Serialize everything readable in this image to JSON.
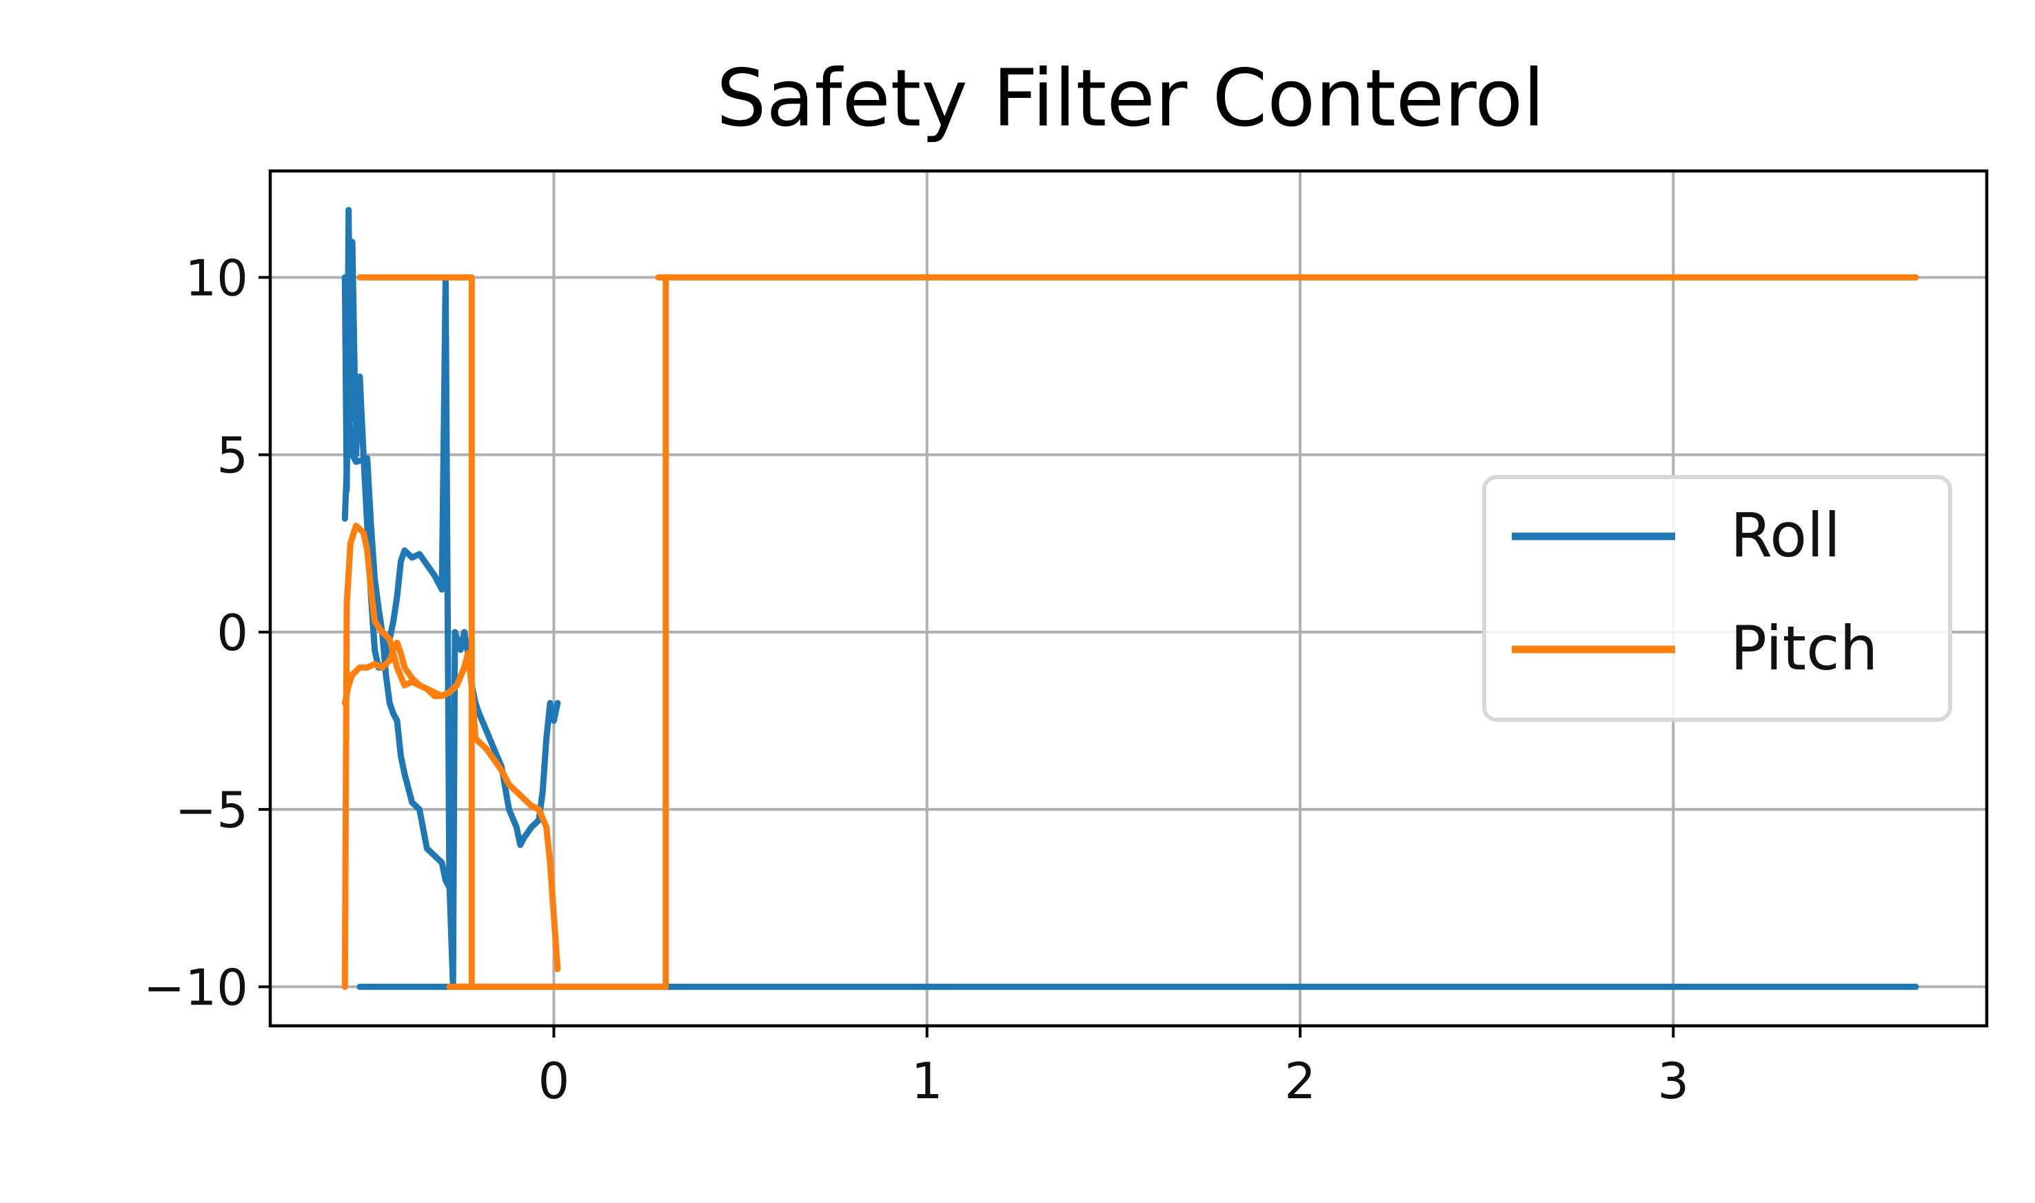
{
  "chart_data": {
    "type": "line",
    "title": "Safety Filter Conterol",
    "xlabel": "",
    "ylabel": "",
    "xlim": [
      -0.76,
      3.84
    ],
    "ylim": [
      -11.1,
      13.0
    ],
    "x_ticks": [
      0,
      1,
      2,
      3
    ],
    "x_tick_labels": [
      "0",
      "1",
      "2",
      "3"
    ],
    "y_ticks": [
      10,
      5,
      0,
      -5,
      -10
    ],
    "y_tick_labels": [
      "10",
      "5",
      "0",
      "−5",
      "−10"
    ],
    "grid": true,
    "legend_position": "center-right",
    "series": [
      {
        "name": "Roll",
        "color": "#1f77b4",
        "points": [
          [
            -0.56,
            10.0
          ],
          [
            -0.555,
            4.0
          ],
          [
            -0.55,
            11.9
          ],
          [
            -0.545,
            6.0
          ],
          [
            -0.54,
            11.0
          ],
          [
            -0.53,
            5.0
          ],
          [
            -0.52,
            7.2
          ],
          [
            -0.51,
            5.0
          ],
          [
            -0.5,
            3.0
          ],
          [
            -0.49,
            1.0
          ],
          [
            -0.48,
            -0.5
          ],
          [
            -0.47,
            -1.0
          ],
          [
            -0.46,
            -1.0
          ],
          [
            -0.45,
            -0.8
          ],
          [
            -0.44,
            -0.2
          ],
          [
            -0.43,
            0.3
          ],
          [
            -0.42,
            1.0
          ],
          [
            -0.41,
            2.0
          ],
          [
            -0.4,
            2.3
          ],
          [
            -0.38,
            2.1
          ],
          [
            -0.36,
            2.2
          ],
          [
            -0.34,
            1.9
          ],
          [
            -0.32,
            1.6
          ],
          [
            -0.3,
            1.2
          ],
          [
            -0.29,
            10.0
          ],
          [
            -0.28,
            -7.0
          ],
          [
            -0.27,
            -10.0
          ],
          [
            -0.265,
            0.0
          ],
          [
            -0.25,
            -0.5
          ],
          [
            -0.24,
            0.0
          ],
          [
            -0.23,
            -0.6
          ],
          [
            -0.22,
            -1.5
          ],
          [
            -0.21,
            -2.0
          ],
          [
            -0.2,
            -2.3
          ],
          [
            -0.18,
            -2.8
          ],
          [
            -0.16,
            -3.3
          ],
          [
            -0.14,
            -3.8
          ],
          [
            -0.12,
            -5.0
          ],
          [
            -0.1,
            -5.5
          ],
          [
            -0.09,
            -6.0
          ],
          [
            -0.08,
            -5.8
          ],
          [
            -0.06,
            -5.5
          ],
          [
            -0.04,
            -5.3
          ],
          [
            -0.03,
            -4.5
          ],
          [
            -0.02,
            -3.0
          ],
          [
            -0.01,
            -2.0
          ],
          [
            0.0,
            -2.5
          ],
          [
            0.01,
            -2.0
          ]
        ]
      },
      {
        "name": "Roll",
        "color": "#1f77b4",
        "points": [
          [
            -0.56,
            3.2
          ],
          [
            -0.55,
            6.0
          ],
          [
            -0.54,
            5.0
          ],
          [
            -0.53,
            4.8
          ],
          [
            -0.5,
            4.9
          ],
          [
            -0.49,
            3.0
          ],
          [
            -0.48,
            1.5
          ],
          [
            -0.47,
            0.7
          ],
          [
            -0.46,
            0.0
          ],
          [
            -0.45,
            -1.2
          ],
          [
            -0.44,
            -2.0
          ],
          [
            -0.43,
            -2.3
          ],
          [
            -0.42,
            -2.5
          ],
          [
            -0.41,
            -3.5
          ],
          [
            -0.4,
            -4.0
          ],
          [
            -0.38,
            -4.8
          ],
          [
            -0.36,
            -5.0
          ],
          [
            -0.34,
            -6.1
          ],
          [
            -0.32,
            -6.3
          ],
          [
            -0.3,
            -6.5
          ],
          [
            -0.29,
            -7.0
          ],
          [
            -0.28,
            -7.2
          ]
        ]
      },
      {
        "name": "Roll",
        "color": "#1f77b4",
        "points": [
          [
            -0.52,
            -10.0
          ],
          [
            3.65,
            -10.0
          ]
        ]
      },
      {
        "name": "Pitch",
        "color": "#ff7f0e",
        "points": [
          [
            -0.56,
            -2.0
          ],
          [
            -0.55,
            -1.5
          ],
          [
            -0.54,
            -1.2
          ],
          [
            -0.52,
            -1.0
          ],
          [
            -0.5,
            -1.0
          ],
          [
            -0.48,
            -0.9
          ],
          [
            -0.46,
            -1.0
          ],
          [
            -0.44,
            -0.8
          ],
          [
            -0.43,
            -0.5
          ],
          [
            -0.42,
            -0.3
          ],
          [
            -0.41,
            -0.6
          ],
          [
            -0.4,
            -1.0
          ],
          [
            -0.38,
            -1.3
          ],
          [
            -0.36,
            -1.5
          ],
          [
            -0.34,
            -1.6
          ],
          [
            -0.32,
            -1.7
          ],
          [
            -0.3,
            -1.8
          ],
          [
            -0.28,
            -1.7
          ],
          [
            -0.26,
            -1.5
          ],
          [
            -0.24,
            -1.0
          ],
          [
            -0.23,
            -0.6
          ],
          [
            -0.22,
            -1.5
          ],
          [
            -0.21,
            -3.0
          ],
          [
            -0.2,
            -3.1
          ],
          [
            -0.18,
            -3.3
          ],
          [
            -0.16,
            -3.6
          ],
          [
            -0.14,
            -3.9
          ],
          [
            -0.12,
            -4.3
          ],
          [
            -0.1,
            -4.5
          ],
          [
            -0.08,
            -4.7
          ],
          [
            -0.06,
            -4.9
          ],
          [
            -0.04,
            -5.0
          ],
          [
            -0.02,
            -5.5
          ],
          [
            -0.01,
            -6.5
          ],
          [
            0.0,
            -8.0
          ],
          [
            0.01,
            -9.5
          ]
        ]
      },
      {
        "name": "Pitch",
        "color": "#ff7f0e",
        "points": [
          [
            -0.56,
            -10.0
          ],
          [
            -0.555,
            0.8
          ],
          [
            -0.545,
            2.5
          ],
          [
            -0.53,
            3.0
          ],
          [
            -0.51,
            2.8
          ],
          [
            -0.5,
            2.3
          ],
          [
            -0.49,
            1.2
          ],
          [
            -0.48,
            0.3
          ],
          [
            -0.46,
            0.0
          ],
          [
            -0.44,
            -0.2
          ],
          [
            -0.42,
            -1.0
          ],
          [
            -0.4,
            -1.5
          ],
          [
            -0.38,
            -1.4
          ],
          [
            -0.36,
            -1.5
          ],
          [
            -0.34,
            -1.6
          ],
          [
            -0.32,
            -1.8
          ],
          [
            -0.3,
            -1.8
          ],
          [
            -0.28,
            -1.7
          ],
          [
            -0.26,
            -1.5
          ],
          [
            -0.24,
            -1.0
          ]
        ]
      },
      {
        "name": "Pitch",
        "color": "#ff7f0e",
        "points": [
          [
            -0.52,
            10.0
          ],
          [
            -0.22,
            10.0
          ],
          [
            -0.22,
            -10.0
          ],
          [
            -0.28,
            -10.0
          ],
          [
            0.3,
            -10.0
          ],
          [
            0.3,
            10.0
          ],
          [
            0.28,
            10.0
          ],
          [
            3.65,
            10.0
          ]
        ]
      }
    ],
    "legend": [
      {
        "label": "Roll",
        "color": "#1f77b4"
      },
      {
        "label": "Pitch",
        "color": "#ff7f0e"
      }
    ]
  }
}
